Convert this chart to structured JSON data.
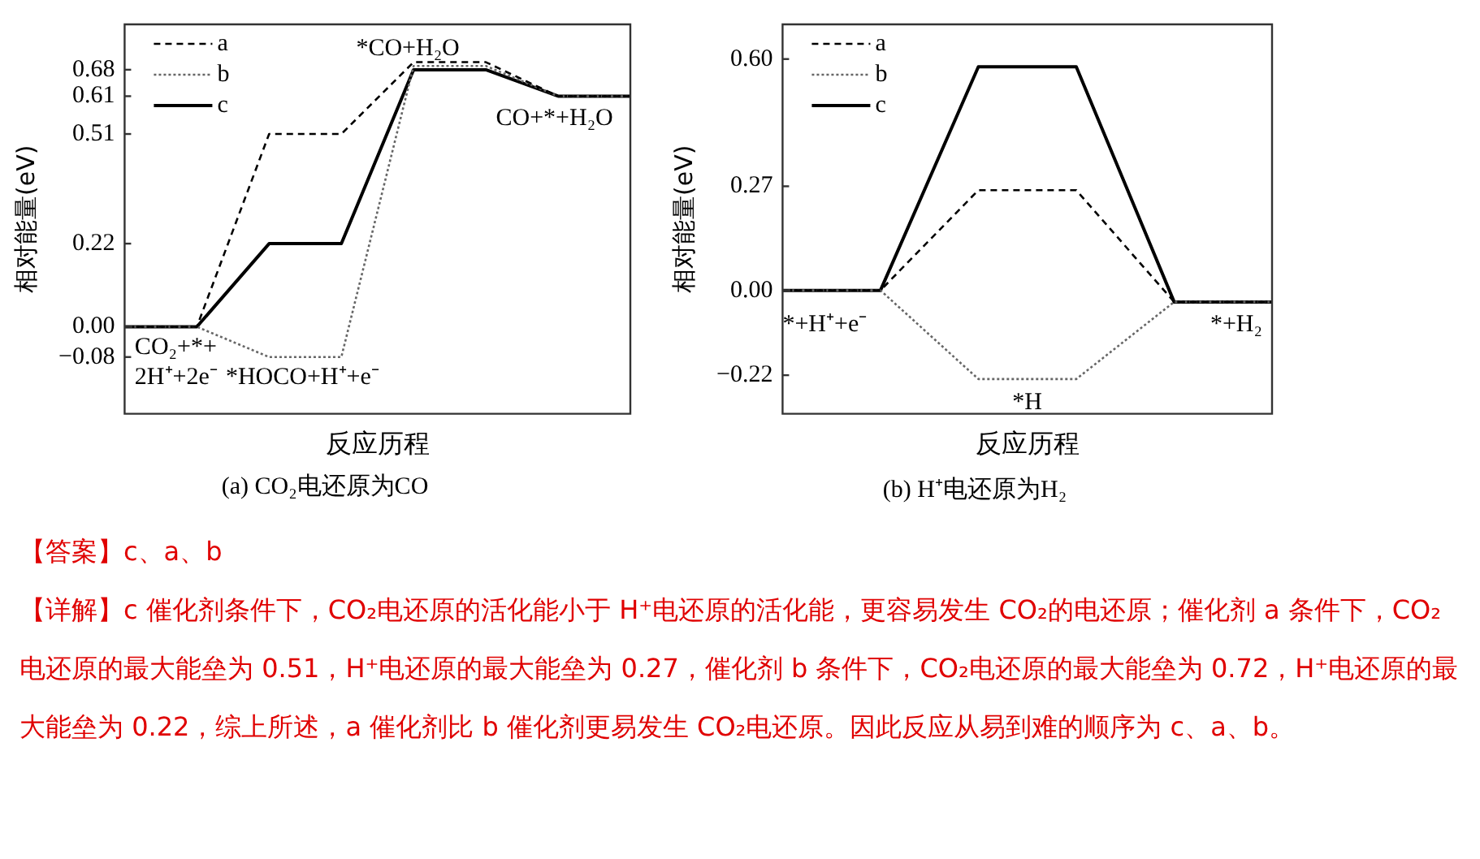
{
  "chart_data": [
    {
      "type": "line",
      "title": "(a) CO₂电还原为CO",
      "xlabel": "反应历程",
      "ylabel": "相对能量(eV)",
      "categories": [
        null,
        null,
        null,
        null,
        null,
        null,
        null,
        null
      ],
      "series": [
        {
          "name": "a",
          "color": "#000000",
          "line_style": "dashed",
          "values": [
            0,
            0,
            0.51,
            0.51,
            0.7,
            0.7,
            0.61,
            0.61
          ]
        },
        {
          "name": "b",
          "color": "#666666",
          "line_style": "dotted",
          "values": [
            0,
            0,
            -0.08,
            -0.08,
            0.69,
            0.69,
            0.61,
            0.61
          ]
        },
        {
          "name": "c",
          "color": "#000000",
          "line_style": "solid",
          "values": [
            0,
            0,
            0.22,
            0.22,
            0.68,
            0.68,
            0.61,
            0.61
          ]
        }
      ],
      "ylim": [
        -0.23,
        0.8
      ],
      "yticks": [
        {
          "value": -0.08,
          "label": "−0.08"
        },
        {
          "value": 0,
          "label": "0.00"
        },
        0.22,
        0.51,
        0.61,
        0.68
      ],
      "annotations": [
        "CO₂+*+",
        "2H⁺+2e⁻",
        "*HOCO+H⁺+e⁻",
        "*CO+H₂O",
        "CO+*+H₂O"
      ],
      "legend": "top left",
      "marker": "none",
      "tick_labels": "y",
      "grid": false
    },
    {
      "type": "line",
      "title": "(b) H⁺电还原为H₂",
      "xlabel": "反应历程",
      "ylabel": "相对能量(eV)",
      "categories": [
        null,
        null,
        null,
        null,
        null,
        null
      ],
      "series": [
        {
          "name": "a",
          "color": "#000000",
          "line_style": "dashed",
          "values": [
            0,
            0,
            0.26,
            0.26,
            -0.03,
            -0.03
          ]
        },
        {
          "name": "b",
          "color": "#666666",
          "line_style": "dotted",
          "values": [
            0,
            0,
            -0.23,
            -0.23,
            -0.03,
            -0.03
          ]
        },
        {
          "name": "c",
          "color": "#000000",
          "line_style": "solid",
          "values": [
            0,
            0,
            0.58,
            0.58,
            -0.03,
            -0.03
          ]
        }
      ],
      "ylim": [
        -0.32,
        0.69
      ],
      "yticks": [
        {
          "value": -0.22,
          "label": "−0.22"
        },
        {
          "value": 0,
          "label": "0.00"
        },
        0.27,
        {
          "value": 0.6,
          "label": "0.60"
        }
      ],
      "annotations": [
        "*+H⁺+e⁻",
        "*H",
        "*+H₂"
      ],
      "legend": "top left",
      "marker": "none",
      "tick_labels": "y",
      "grid": false
    },
    {
      "type": "other",
      "annotations": [
        "【答案】c、a、b",
        "【详解】c 催化剂条件下，CO₂电还原的活化能小于 H⁺电还原的活化能，更容易发生 CO₂的电还原；催化剂 a 条件下，CO₂电还原的最大能垒为 0.51，H⁺电还原的最大能垒为 0.27，催化剂 b 条件下，CO₂电还原的最大能垒为 0.72，H⁺电还原的最大能垒为 0.22，综上所述，a 催化剂比 b 催化剂更易发生 CO₂电还原。因此反应从易到难的顺序为 c、a、b。"
      ]
    }
  ]
}
